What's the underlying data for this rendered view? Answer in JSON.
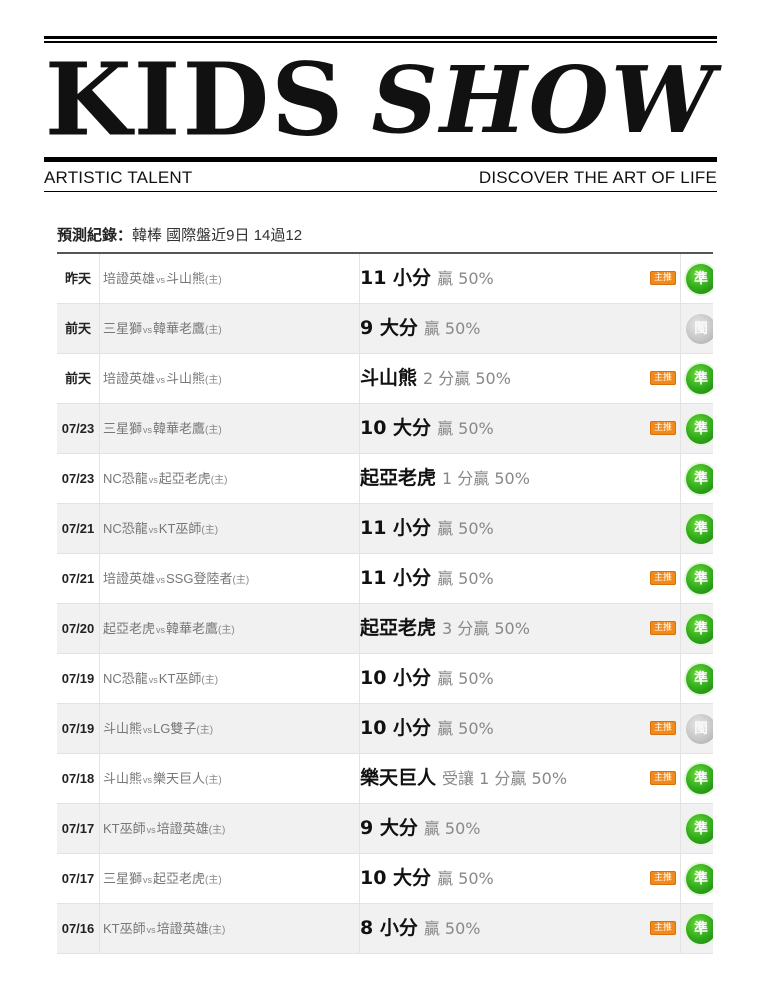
{
  "masthead": {
    "title_part1": "KIDS",
    "title_part2": "SHOW",
    "tagline_left": "ARTISTIC TALENT",
    "tagline_right": "DISCOVER THE ART OF LIFE"
  },
  "record_header": {
    "label": "預測紀錄：",
    "summary": "韓棒 國際盤近9日 14過12"
  },
  "vs_text": "vs",
  "home_mark": "(主)",
  "badge_label": "主推",
  "colors": {
    "win": "#2ea81a",
    "push": "#c4c4c4",
    "badge": "#f08a1c"
  },
  "rows": [
    {
      "date": "昨天",
      "team_a": "培證英雄",
      "team_b": "斗山熊",
      "pick": "11 小分",
      "detail": "贏 50%",
      "featured": true,
      "result": "準",
      "result_type": "win"
    },
    {
      "date": "前天",
      "team_a": "三星獅",
      "team_b": "韓華老鷹",
      "pick": "9 大分",
      "detail": "贏 50%",
      "featured": false,
      "result": "閩",
      "result_type": "push"
    },
    {
      "date": "前天",
      "team_a": "培證英雄",
      "team_b": "斗山熊",
      "pick": "斗山熊",
      "detail": "2 分贏 50%",
      "featured": true,
      "result": "準",
      "result_type": "win"
    },
    {
      "date": "07/23",
      "team_a": "三星獅",
      "team_b": "韓華老鷹",
      "pick": "10 大分",
      "detail": "贏 50%",
      "featured": true,
      "result": "準",
      "result_type": "win"
    },
    {
      "date": "07/23",
      "team_a": "NC恐龍",
      "team_b": "起亞老虎",
      "pick": "起亞老虎",
      "detail": "1 分贏 50%",
      "featured": false,
      "result": "準",
      "result_type": "win"
    },
    {
      "date": "07/21",
      "team_a": "NC恐龍",
      "team_b": "KT巫師",
      "pick": "11 小分",
      "detail": "贏 50%",
      "featured": false,
      "result": "準",
      "result_type": "win"
    },
    {
      "date": "07/21",
      "team_a": "培證英雄",
      "team_b": "SSG登陸者",
      "pick": "11 小分",
      "detail": "贏 50%",
      "featured": true,
      "result": "準",
      "result_type": "win"
    },
    {
      "date": "07/20",
      "team_a": "起亞老虎",
      "team_b": "韓華老鷹",
      "pick": "起亞老虎",
      "detail": "3 分贏 50%",
      "featured": true,
      "result": "準",
      "result_type": "win"
    },
    {
      "date": "07/19",
      "team_a": "NC恐龍",
      "team_b": "KT巫師",
      "pick": "10 小分",
      "detail": "贏 50%",
      "featured": false,
      "result": "準",
      "result_type": "win"
    },
    {
      "date": "07/19",
      "team_a": "斗山熊",
      "team_b": "LG雙子",
      "pick": "10 小分",
      "detail": "贏 50%",
      "featured": true,
      "result": "閩",
      "result_type": "push"
    },
    {
      "date": "07/18",
      "team_a": "斗山熊",
      "team_b": "樂天巨人",
      "pick": "樂天巨人",
      "detail": "受讓 1 分贏 50%",
      "featured": true,
      "result": "準",
      "result_type": "win"
    },
    {
      "date": "07/17",
      "team_a": "KT巫師",
      "team_b": "培證英雄",
      "pick": "9 大分",
      "detail": "贏 50%",
      "featured": false,
      "result": "準",
      "result_type": "win"
    },
    {
      "date": "07/17",
      "team_a": "三星獅",
      "team_b": "起亞老虎",
      "pick": "10 大分",
      "detail": "贏 50%",
      "featured": true,
      "result": "準",
      "result_type": "win"
    },
    {
      "date": "07/16",
      "team_a": "KT巫師",
      "team_b": "培證英雄",
      "pick": "8 小分",
      "detail": "贏 50%",
      "featured": true,
      "result": "準",
      "result_type": "win"
    }
  ]
}
